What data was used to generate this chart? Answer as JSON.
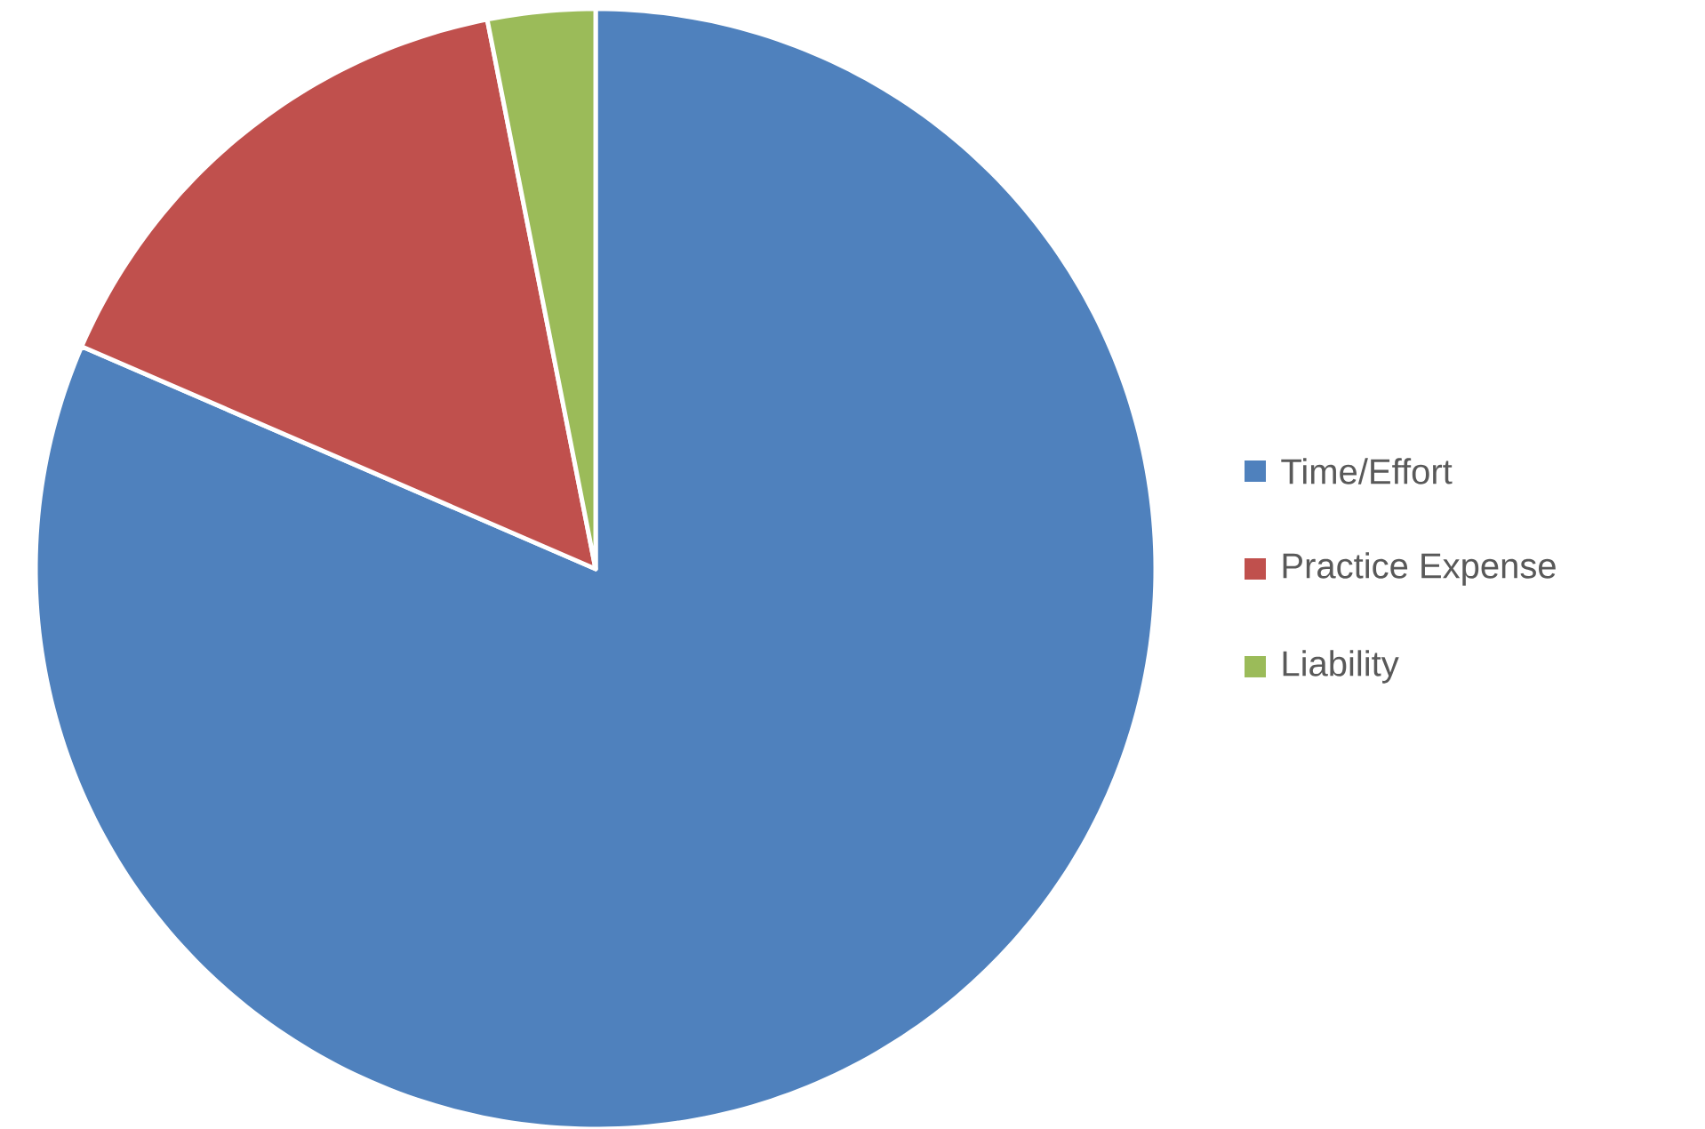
{
  "chart_data": {
    "type": "pie",
    "categories": [
      "Time/Effort",
      "Practice Expense",
      "Liability"
    ],
    "values": [
      81.5,
      15.4,
      3.1
    ],
    "colors": [
      "#4f81bd",
      "#c0504d",
      "#9bbb59"
    ],
    "legend": "right"
  }
}
